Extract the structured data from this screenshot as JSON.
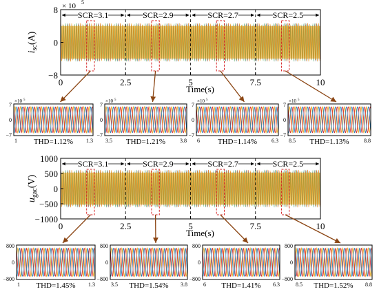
{
  "colors": {
    "phase_a": "#e8a417",
    "phase_b": "#d62728",
    "phase_c": "#1f77b4",
    "green": "#2ca02c",
    "arrow": "#8b4513",
    "dashed_box": "#d62728"
  },
  "chart_data": [
    {
      "type": "line",
      "id": "current_main",
      "ylabel_main": "i",
      "ylabel_sub": "sc",
      "ylabel_unit": "(A)",
      "xlabel": "Time(s)",
      "exponent_label": "× 10",
      "exponent_power": "5",
      "ylim": [
        -8,
        8
      ],
      "yticks": [
        "8",
        "0",
        "−8"
      ],
      "xlim": [
        0,
        10
      ],
      "xticks": [
        "0",
        "2.5",
        "5",
        "7.5",
        "10"
      ],
      "amplitude": 4.7,
      "segments": [
        {
          "label": "SCR=3.1",
          "from": 0,
          "to": 2.5
        },
        {
          "label": "SCR=2.9",
          "from": 2.5,
          "to": 5
        },
        {
          "label": "SCR=2.7",
          "from": 5,
          "to": 7.5
        },
        {
          "label": "SCR=2.5",
          "from": 7.5,
          "to": 10
        }
      ],
      "zooms": [
        {
          "xmin": 1.0,
          "xmax": 1.3,
          "ymin_label": "−7",
          "ymax_label": "7",
          "exp_label": "×10",
          "exp_power": "5",
          "thd": "THD=1.12%",
          "xtick_left": "1",
          "xtick_right": "1.3"
        },
        {
          "xmin": 3.5,
          "xmax": 3.8,
          "ymin_label": "−7",
          "ymax_label": "7",
          "exp_label": "×10",
          "exp_power": "5",
          "thd": "THD=1.21%",
          "xtick_left": "3.5",
          "xtick_right": "3.8"
        },
        {
          "xmin": 6.0,
          "xmax": 6.3,
          "ymin_label": "−7",
          "ymax_label": "7",
          "exp_label": "×10",
          "exp_power": "5",
          "thd": "THD=1.14%",
          "xtick_left": "6",
          "xtick_right": "6.3"
        },
        {
          "xmin": 8.5,
          "xmax": 8.8,
          "ymin_label": "−7",
          "ymax_label": "7",
          "exp_label": "×10",
          "exp_power": "5",
          "thd": "THD=1.13%",
          "xtick_left": "8.5",
          "xtick_right": "8.8"
        }
      ]
    },
    {
      "type": "line",
      "id": "voltage_main",
      "ylabel_main": "u",
      "ylabel_sub": "gac",
      "ylabel_unit": "(V)",
      "xlabel": "Time(s)",
      "ylim": [
        -1000,
        1000
      ],
      "yticks": [
        "1000",
        "500",
        "0",
        "−500",
        "−1000"
      ],
      "xlim": [
        0,
        10
      ],
      "xticks": [
        "0",
        "2.5",
        "5",
        "7.5",
        "10"
      ],
      "amplitude": 620,
      "segments": [
        {
          "label": "SCR=3.1",
          "from": 0,
          "to": 2.5
        },
        {
          "label": "SCR=2.9",
          "from": 2.5,
          "to": 5
        },
        {
          "label": "SCR=2.7",
          "from": 5,
          "to": 7.5
        },
        {
          "label": "SCR=2.5",
          "from": 7.5,
          "to": 10
        }
      ],
      "zooms": [
        {
          "xmin": 1.0,
          "xmax": 1.3,
          "ymin_label": "−800",
          "ymax_label": "800",
          "thd": "THD=1.45%",
          "xtick_left": "1",
          "xtick_right": "1.3"
        },
        {
          "xmin": 3.5,
          "xmax": 3.8,
          "ymin_label": "−800",
          "ymax_label": "800",
          "thd": "THD=1.54%",
          "xtick_left": "3.5",
          "xtick_right": "3.8"
        },
        {
          "xmin": 6.0,
          "xmax": 6.3,
          "ymin_label": "−800",
          "ymax_label": "800",
          "thd": "THD=1.41%",
          "xtick_left": "6",
          "xtick_right": "6.3"
        },
        {
          "xmin": 8.5,
          "xmax": 8.8,
          "ymin_label": "−800",
          "ymax_label": "800",
          "thd": "THD=1.52%",
          "xtick_left": "8.5",
          "xtick_right": "8.8"
        }
      ]
    }
  ]
}
